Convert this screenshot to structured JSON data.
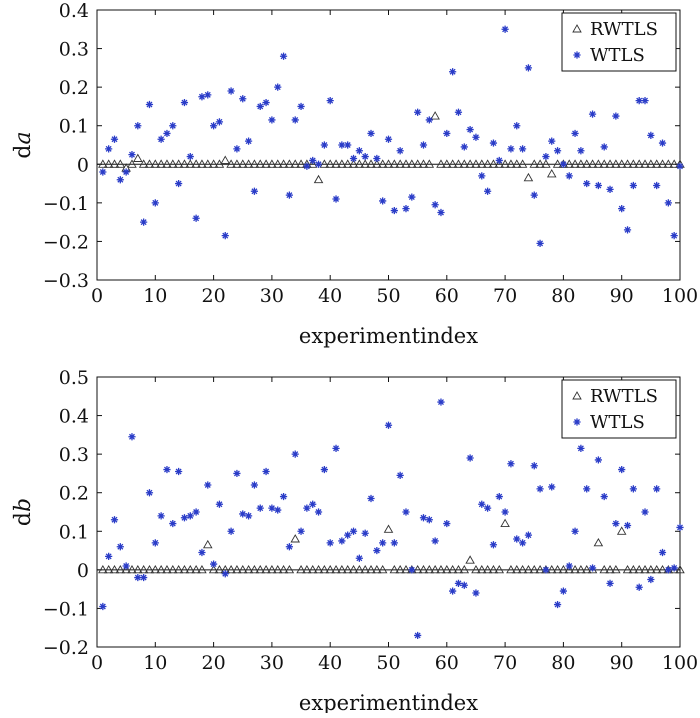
{
  "chart_data": [
    {
      "type": "scatter",
      "xlabel": "experimentindex",
      "ylabel_prefix": "d",
      "ylabel_var": "a",
      "xlim": [
        0,
        100
      ],
      "ylim": [
        -0.3,
        0.4
      ],
      "xticks": [
        "0",
        "10",
        "20",
        "30",
        "40",
        "50",
        "60",
        "70",
        "80",
        "90",
        "100"
      ],
      "yticks": [
        "−0.3",
        "−0.2",
        "−0.1",
        "0",
        "0.1",
        "0.2",
        "0.3",
        "0.4"
      ],
      "legend": {
        "position": "top-right",
        "entries": [
          "RWTLS",
          "WTLS"
        ]
      },
      "series": [
        {
          "name": "RWTLS",
          "marker": "open-triangle",
          "color": "#333333",
          "x": [
            1,
            2,
            3,
            4,
            5,
            6,
            7,
            8,
            9,
            10,
            11,
            12,
            13,
            14,
            15,
            16,
            17,
            18,
            19,
            20,
            21,
            22,
            23,
            24,
            25,
            26,
            27,
            28,
            29,
            30,
            31,
            32,
            33,
            34,
            35,
            36,
            37,
            38,
            39,
            40,
            41,
            42,
            43,
            44,
            45,
            46,
            47,
            48,
            49,
            50,
            51,
            52,
            53,
            54,
            55,
            56,
            57,
            58,
            59,
            60,
            61,
            62,
            63,
            64,
            65,
            66,
            67,
            68,
            69,
            70,
            71,
            72,
            73,
            74,
            75,
            76,
            77,
            78,
            79,
            80,
            81,
            82,
            83,
            84,
            85,
            86,
            87,
            88,
            89,
            90,
            91,
            92,
            93,
            94,
            95,
            96,
            97,
            98,
            99,
            100
          ],
          "y": [
            0,
            0,
            0,
            0,
            -0.01,
            0,
            0.015,
            0,
            0,
            0,
            0,
            0,
            0,
            0,
            0,
            0,
            0,
            0,
            0,
            0,
            0,
            0.01,
            0,
            0,
            0,
            0,
            0,
            0,
            0,
            0,
            0,
            0,
            0,
            0,
            0,
            0,
            0,
            -0.04,
            0,
            0,
            0,
            0,
            0,
            0,
            0,
            0,
            0,
            0,
            0,
            0,
            0,
            0,
            0,
            0,
            0,
            0,
            0,
            0.125,
            0,
            0,
            0,
            0,
            0,
            0,
            0,
            0,
            0,
            0,
            0,
            0,
            0,
            0,
            0,
            -0.035,
            0,
            0,
            0,
            -0.025,
            0,
            0,
            0,
            0,
            0,
            0,
            0,
            0,
            0,
            0,
            0,
            0,
            0,
            0,
            0,
            0,
            0,
            0,
            0,
            0,
            0,
            0
          ]
        },
        {
          "name": "WTLS",
          "marker": "star",
          "color": "#2a3cc8",
          "x": [
            1,
            2,
            3,
            4,
            5,
            6,
            7,
            8,
            9,
            10,
            11,
            12,
            13,
            14,
            15,
            16,
            17,
            18,
            19,
            20,
            21,
            22,
            23,
            24,
            25,
            26,
            27,
            28,
            29,
            30,
            31,
            32,
            33,
            34,
            35,
            36,
            37,
            38,
            39,
            40,
            41,
            42,
            43,
            44,
            45,
            46,
            47,
            48,
            49,
            50,
            51,
            52,
            53,
            54,
            55,
            56,
            57,
            58,
            59,
            60,
            61,
            62,
            63,
            64,
            65,
            66,
            67,
            68,
            69,
            70,
            71,
            72,
            73,
            74,
            75,
            76,
            77,
            78,
            79,
            80,
            81,
            82,
            83,
            84,
            85,
            86,
            87,
            88,
            89,
            90,
            91,
            92,
            93,
            94,
            95,
            96,
            97,
            98,
            99,
            100
          ],
          "y": [
            -0.02,
            0.04,
            0.065,
            -0.04,
            -0.02,
            0.025,
            0.1,
            -0.15,
            0.155,
            -0.1,
            0.065,
            0.08,
            0.1,
            -0.05,
            0.16,
            0.02,
            -0.14,
            0.175,
            0.18,
            0.1,
            0.11,
            -0.185,
            0.19,
            0.04,
            0.17,
            0.06,
            -0.07,
            0.15,
            0.16,
            0.115,
            0.2,
            0.28,
            -0.08,
            0.115,
            0.15,
            -0.005,
            0.01,
            0.0,
            0.05,
            0.165,
            -0.09,
            0.05,
            0.05,
            0.015,
            0.035,
            0.02,
            0.08,
            0.015,
            -0.095,
            0.065,
            -0.12,
            0.035,
            -0.115,
            -0.085,
            0.135,
            0.05,
            0.115,
            -0.105,
            -0.125,
            0.08,
            0.24,
            0.135,
            0.045,
            0.09,
            0.07,
            -0.03,
            -0.07,
            0.055,
            0.01,
            0.35,
            0.04,
            0.1,
            0.04,
            0.25,
            -0.08,
            -0.205,
            0.02,
            0.06,
            0.035,
            0.0,
            -0.03,
            0.08,
            0.035,
            -0.05,
            0.13,
            -0.055,
            0.045,
            -0.065,
            0.125,
            -0.115,
            -0.17,
            -0.055,
            0.165,
            0.165,
            0.075,
            -0.055,
            0.055,
            -0.1,
            -0.185,
            -0.005
          ]
        }
      ]
    },
    {
      "type": "scatter",
      "xlabel": "experimentindex",
      "ylabel_prefix": "d",
      "ylabel_var": "b",
      "xlim": [
        0,
        100
      ],
      "ylim": [
        -0.2,
        0.5
      ],
      "xticks": [
        "0",
        "10",
        "20",
        "30",
        "40",
        "50",
        "60",
        "70",
        "80",
        "90",
        "100"
      ],
      "yticks": [
        "−0.2",
        "−0.1",
        "0",
        "0.1",
        "0.2",
        "0.3",
        "0.4",
        "0.5"
      ],
      "legend": {
        "position": "top-right",
        "entries": [
          "RWTLS",
          "WTLS"
        ]
      },
      "series": [
        {
          "name": "RWTLS",
          "marker": "open-triangle",
          "color": "#333333",
          "x": [
            1,
            2,
            3,
            4,
            5,
            6,
            7,
            8,
            9,
            10,
            11,
            12,
            13,
            14,
            15,
            16,
            17,
            18,
            19,
            20,
            21,
            22,
            23,
            24,
            25,
            26,
            27,
            28,
            29,
            30,
            31,
            32,
            33,
            34,
            35,
            36,
            37,
            38,
            39,
            40,
            41,
            42,
            43,
            44,
            45,
            46,
            47,
            48,
            49,
            50,
            51,
            52,
            53,
            54,
            55,
            56,
            57,
            58,
            59,
            60,
            61,
            62,
            63,
            64,
            65,
            66,
            67,
            68,
            69,
            70,
            71,
            72,
            73,
            74,
            75,
            76,
            77,
            78,
            79,
            80,
            81,
            82,
            83,
            84,
            85,
            86,
            87,
            88,
            89,
            90,
            91,
            92,
            93,
            94,
            95,
            96,
            97,
            98,
            99,
            100
          ],
          "y": [
            0,
            0,
            0,
            0,
            0,
            0,
            0,
            0,
            0,
            0,
            0,
            0,
            0,
            0,
            0,
            0,
            0,
            0,
            0.065,
            0,
            0,
            0,
            0,
            0,
            0,
            0,
            0,
            0,
            0,
            0,
            0,
            0,
            0,
            0.08,
            0,
            0,
            0,
            0,
            0,
            0,
            0,
            0,
            0,
            0,
            0,
            0,
            0,
            0,
            0,
            0.105,
            0,
            0,
            0,
            0,
            0,
            0,
            0,
            0,
            0,
            0,
            0,
            0,
            0,
            0.025,
            0,
            0,
            0,
            0,
            0,
            0.12,
            0,
            0,
            0,
            0,
            0,
            0,
            0,
            0,
            0,
            0,
            0,
            0,
            0,
            0,
            0,
            0.07,
            0,
            0,
            0,
            0.1,
            0,
            0,
            0,
            0,
            0,
            0,
            0,
            0,
            0,
            0
          ]
        },
        {
          "name": "WTLS",
          "marker": "star",
          "color": "#2a3cc8",
          "x": [
            1,
            2,
            3,
            4,
            5,
            6,
            7,
            8,
            9,
            10,
            11,
            12,
            13,
            14,
            15,
            16,
            17,
            18,
            19,
            20,
            21,
            22,
            23,
            24,
            25,
            26,
            27,
            28,
            29,
            30,
            31,
            32,
            33,
            34,
            35,
            36,
            37,
            38,
            39,
            40,
            41,
            42,
            43,
            44,
            45,
            46,
            47,
            48,
            49,
            50,
            51,
            52,
            53,
            54,
            55,
            56,
            57,
            58,
            59,
            60,
            61,
            62,
            63,
            64,
            65,
            66,
            67,
            68,
            69,
            70,
            71,
            72,
            73,
            74,
            75,
            76,
            77,
            78,
            79,
            80,
            81,
            82,
            83,
            84,
            85,
            86,
            87,
            88,
            89,
            90,
            91,
            92,
            93,
            94,
            95,
            96,
            97,
            98,
            99,
            100
          ],
          "y": [
            -0.095,
            0.035,
            0.13,
            0.06,
            0.01,
            0.345,
            -0.02,
            -0.02,
            0.2,
            0.07,
            0.14,
            0.26,
            0.12,
            0.255,
            0.135,
            0.14,
            0.15,
            0.045,
            0.22,
            0.015,
            0.17,
            -0.01,
            0.1,
            0.25,
            0.145,
            0.14,
            0.22,
            0.16,
            0.255,
            0.16,
            0.155,
            0.19,
            0.06,
            0.3,
            0.1,
            0.16,
            0.17,
            0.15,
            0.26,
            0.07,
            0.315,
            0.075,
            0.09,
            0.1,
            0.03,
            0.095,
            0.185,
            0.05,
            0.07,
            0.375,
            0.07,
            0.245,
            0.15,
            0.0,
            -0.17,
            0.135,
            0.13,
            0.075,
            0.435,
            0.12,
            -0.055,
            -0.035,
            -0.04,
            0.29,
            -0.06,
            0.17,
            0.16,
            0.065,
            0.19,
            0.15,
            0.275,
            0.08,
            0.07,
            0.09,
            0.27,
            0.21,
            0.0,
            0.215,
            -0.09,
            -0.055,
            0.01,
            0.1,
            0.315,
            0.21,
            0.005,
            0.285,
            0.19,
            -0.035,
            0.12,
            0.26,
            0.115,
            0.21,
            -0.045,
            0.15,
            -0.025,
            0.21,
            0.045,
            0.0,
            0.005,
            0.11
          ]
        }
      ]
    }
  ]
}
